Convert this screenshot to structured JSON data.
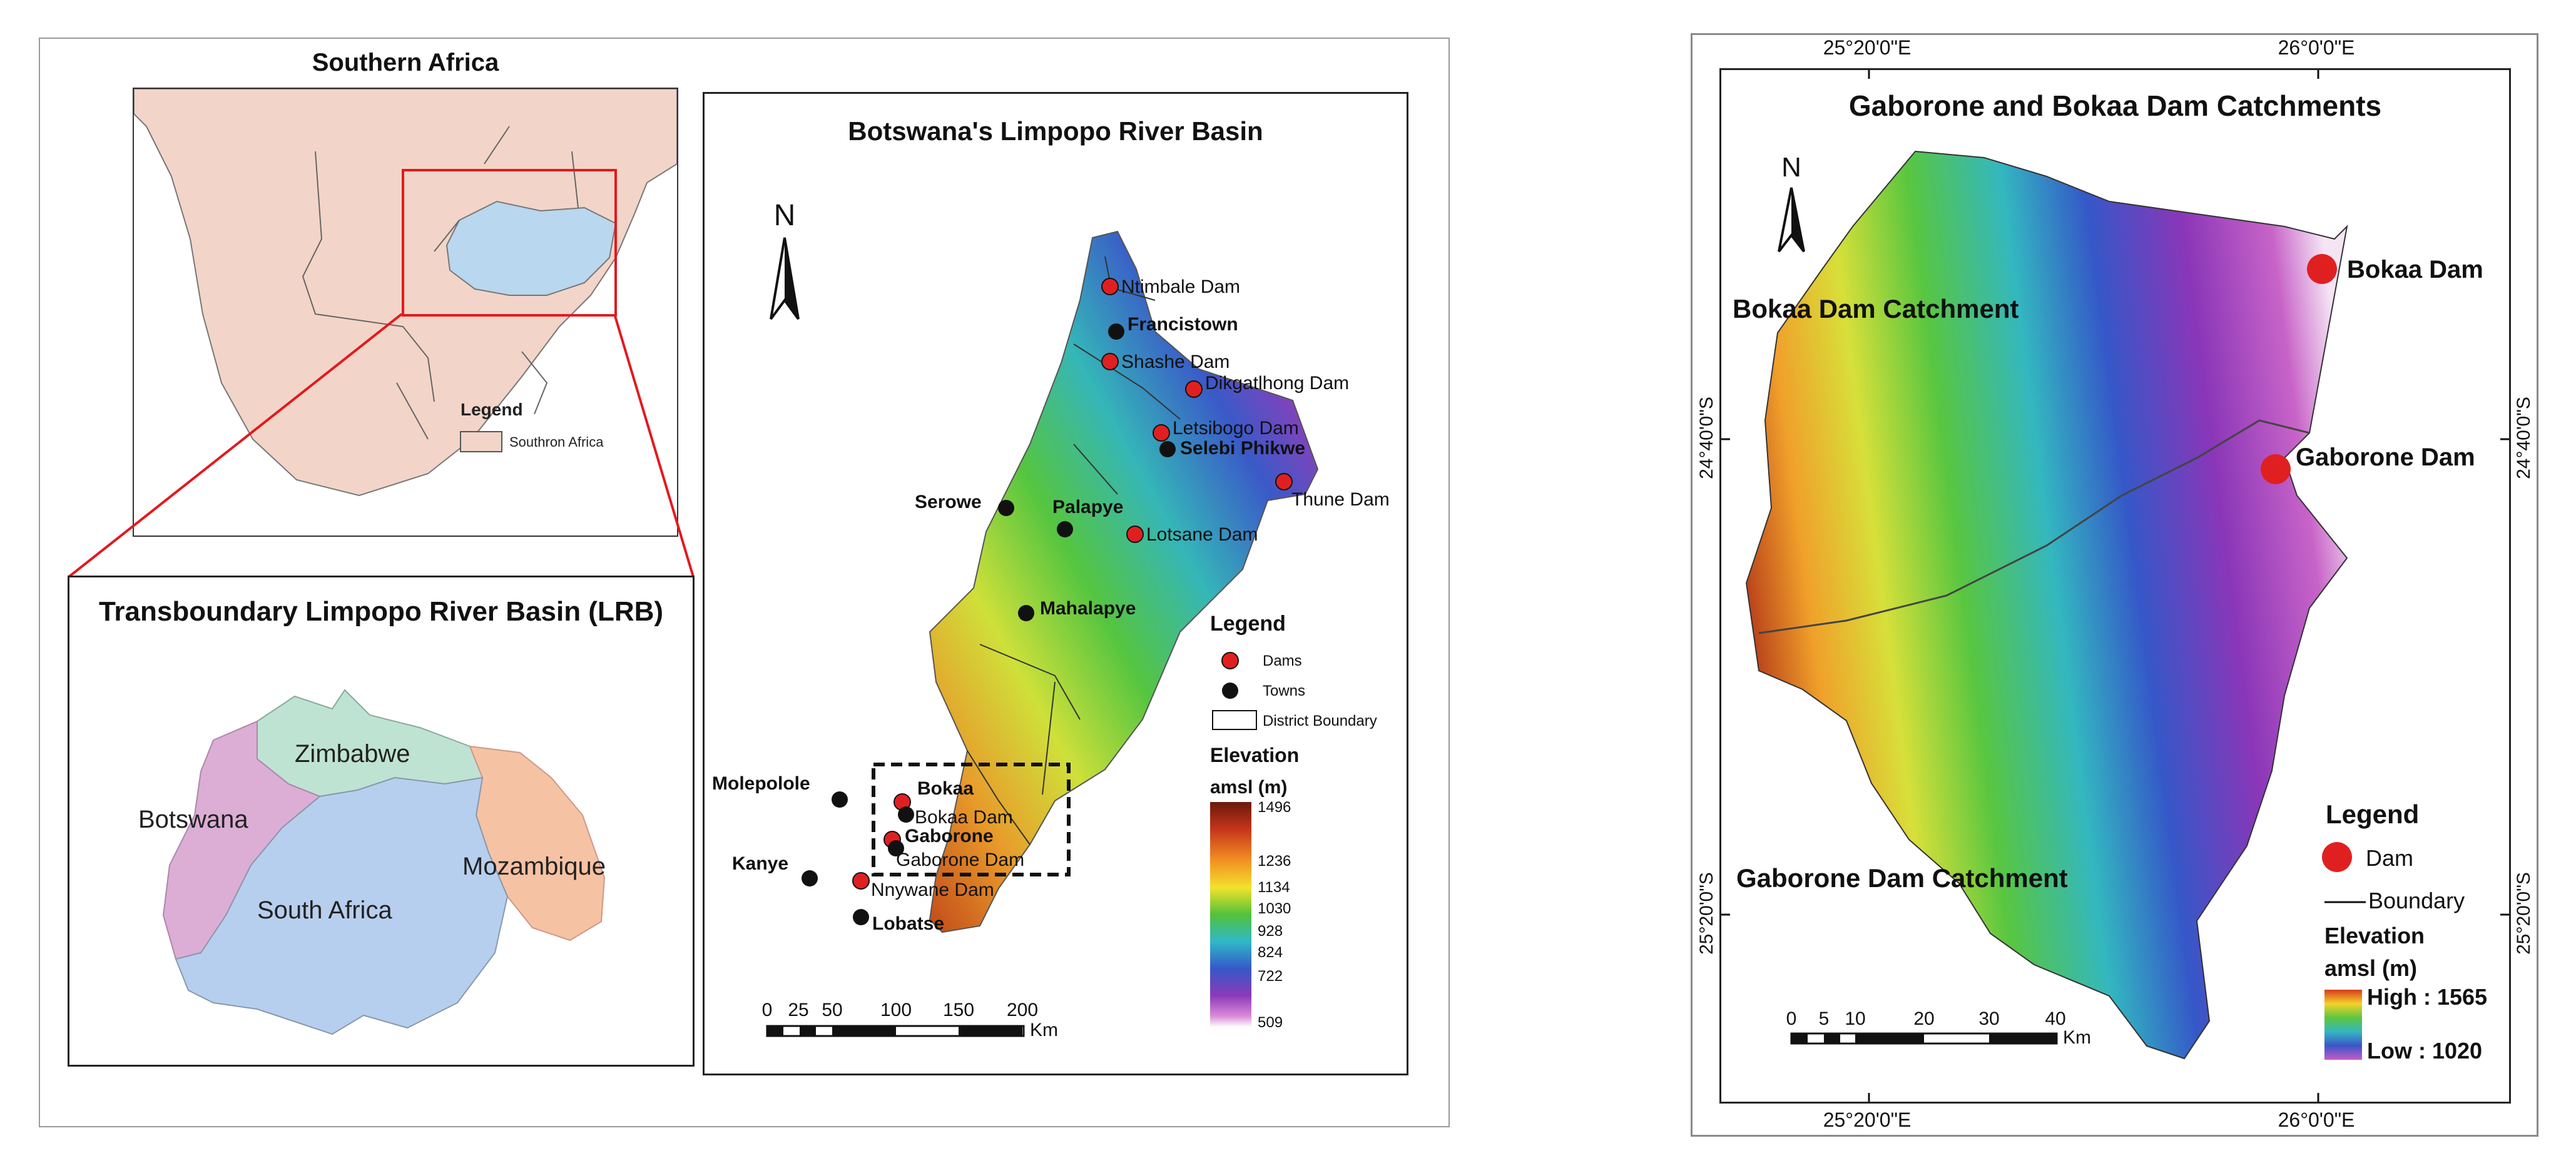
{
  "southern_africa": {
    "title": "Southern Africa",
    "legend_title": "Legend",
    "legend_item": "Southron Africa",
    "colors": {
      "land": "#f2d5c8",
      "lrb": "#b9d7ee",
      "highlight": "#e3191e"
    }
  },
  "lrb": {
    "title": "Transboundary Limpopo River Basin (LRB)",
    "countries": [
      {
        "name": "Zimbabwe",
        "color": "#bfe3d3"
      },
      {
        "name": "Botswana",
        "color": "#dcaed5"
      },
      {
        "name": "Mozambique",
        "color": "#f6c2a4"
      },
      {
        "name": "South Africa",
        "color": "#b7cfee"
      }
    ]
  },
  "botswana": {
    "title": "Botswana's Limpopo River Basin",
    "north": "N",
    "dams": [
      "Ntimbale Dam",
      "Shashe Dam",
      "Dikgatlhong Dam",
      "Letsibogo Dam",
      "Thune Dam",
      "Lotsane Dam",
      "Bokaa Dam",
      "Gaborone Dam",
      "Nnywane Dam"
    ],
    "towns": [
      "Francistown",
      "Selebi Phikwe",
      "Serowe",
      "Palapye",
      "Mahalapye",
      "Molepolole",
      "Bokaa",
      "Gaborone",
      "Kanye",
      "Lobatse"
    ],
    "legend": {
      "title": "Legend",
      "dams": "Dams",
      "towns": "Towns",
      "district": "District Boundary"
    },
    "elevation": {
      "title": "Elevation",
      "unit": "amsl (m)",
      "ticks": [
        "1496",
        "1236",
        "1134",
        "1030",
        "928",
        "824",
        "722",
        "509"
      ]
    },
    "scale": {
      "ticks": [
        "0",
        "25",
        "50",
        "100",
        "150",
        "200"
      ],
      "unit": "Km"
    }
  },
  "catchments": {
    "title": "Gaborone and Bokaa Dam Catchments",
    "north": "N",
    "labels": {
      "bokaa_catchment": "Bokaa Dam Catchment",
      "gaborone_catchment": "Gaborone Dam Catchment",
      "bokaa_dam": "Bokaa Dam",
      "gaborone_dam": "Gaborone Dam"
    },
    "lon_ticks": [
      "25°20'0\"E",
      "26°0'0\"E"
    ],
    "lat_ticks": [
      "24°40'0\"S",
      "25°20'0\"S"
    ],
    "legend": {
      "title": "Legend",
      "dam": "Dam",
      "boundary": "Boundary",
      "elevation_title": "Elevation",
      "elevation_unit": "amsl (m)",
      "high": "High : 1565",
      "low": "Low : 1020"
    },
    "scale": {
      "ticks": [
        "0",
        "5",
        "10",
        "20",
        "30",
        "40"
      ],
      "unit": "Km"
    }
  }
}
